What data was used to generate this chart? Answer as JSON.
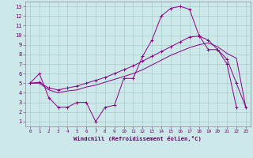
{
  "xlabel": "Windchill (Refroidissement éolien,°C)",
  "background_color": "#cce8e8",
  "grid_color": "#aacccc",
  "line_color": "#880088",
  "xlim_min": -0.5,
  "xlim_max": 23.5,
  "ylim_min": 0.5,
  "ylim_max": 13.5,
  "xticks": [
    0,
    1,
    2,
    3,
    4,
    5,
    6,
    7,
    8,
    9,
    10,
    11,
    12,
    13,
    14,
    15,
    16,
    17,
    18,
    19,
    20,
    21,
    22,
    23
  ],
  "yticks": [
    1,
    2,
    3,
    4,
    5,
    6,
    7,
    8,
    9,
    10,
    11,
    12,
    13
  ],
  "curve1_x": [
    0,
    1,
    2,
    3,
    4,
    5,
    6,
    7,
    8,
    9,
    10,
    11,
    12,
    13,
    14,
    15,
    16,
    17,
    18,
    19,
    20,
    21,
    22
  ],
  "curve1_y": [
    5.0,
    6.0,
    3.5,
    2.5,
    2.5,
    3.0,
    3.0,
    1.0,
    2.5,
    2.7,
    5.5,
    5.5,
    7.8,
    9.5,
    12.0,
    12.8,
    13.0,
    12.7,
    10.0,
    8.5,
    8.5,
    7.0,
    2.5
  ],
  "curve2_x": [
    0,
    1,
    2,
    3,
    4,
    5,
    6,
    7,
    8,
    9,
    10,
    11,
    12,
    13,
    14,
    15,
    16,
    17,
    18,
    19,
    20,
    21,
    22,
    23
  ],
  "curve2_y": [
    5.0,
    5.1,
    4.5,
    4.3,
    4.5,
    4.7,
    5.0,
    5.3,
    5.6,
    6.0,
    6.4,
    6.8,
    7.3,
    7.8,
    8.3,
    8.8,
    9.3,
    9.8,
    9.9,
    9.5,
    8.5,
    7.5,
    5.0,
    2.5
  ],
  "curve3_x": [
    0,
    1,
    2,
    3,
    4,
    5,
    6,
    7,
    8,
    9,
    10,
    11,
    12,
    13,
    14,
    15,
    16,
    17,
    18,
    19,
    20,
    21,
    22,
    23
  ],
  "curve3_y": [
    5.0,
    5.0,
    4.3,
    4.0,
    4.2,
    4.3,
    4.6,
    4.8,
    5.1,
    5.4,
    5.7,
    6.0,
    6.4,
    6.9,
    7.4,
    7.9,
    8.3,
    8.7,
    9.0,
    9.2,
    8.8,
    8.1,
    7.6,
    2.5
  ]
}
